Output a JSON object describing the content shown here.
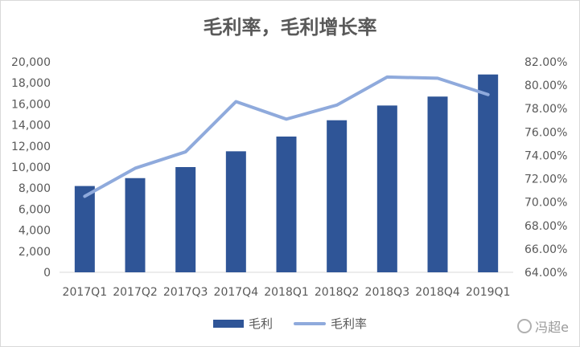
{
  "chart_data": {
    "type": "bar",
    "title": "毛利率，毛利增长率",
    "categories": [
      "2017Q1",
      "2017Q2",
      "2017Q3",
      "2017Q4",
      "2018Q1",
      "2018Q2",
      "2018Q3",
      "2018Q4",
      "2019Q1"
    ],
    "series": [
      {
        "name": "毛利",
        "type": "bar",
        "axis": "left",
        "color": "#2f5597",
        "values": [
          8200,
          8950,
          10000,
          11500,
          12900,
          14450,
          15850,
          16700,
          18800
        ]
      },
      {
        "name": "毛利率",
        "type": "line",
        "axis": "right",
        "color": "#8faadc",
        "values": [
          70.5,
          72.9,
          74.3,
          78.6,
          77.1,
          78.3,
          80.7,
          80.6,
          79.2
        ]
      }
    ],
    "y_left": {
      "ylim": [
        0,
        20000
      ],
      "ticks": [
        "0",
        "2,000",
        "4,000",
        "6,000",
        "8,000",
        "10,000",
        "12,000",
        "14,000",
        "16,000",
        "18,000",
        "20,000"
      ]
    },
    "y_right": {
      "ylim": [
        64,
        82
      ],
      "ticks": [
        "64.00%",
        "66.00%",
        "68.00%",
        "70.00%",
        "72.00%",
        "74.00%",
        "76.00%",
        "78.00%",
        "80.00%",
        "82.00%"
      ]
    },
    "grid": false,
    "legend_position": "bottom"
  },
  "watermark": {
    "text": "冯超e",
    "icon": "wechat-icon"
  }
}
